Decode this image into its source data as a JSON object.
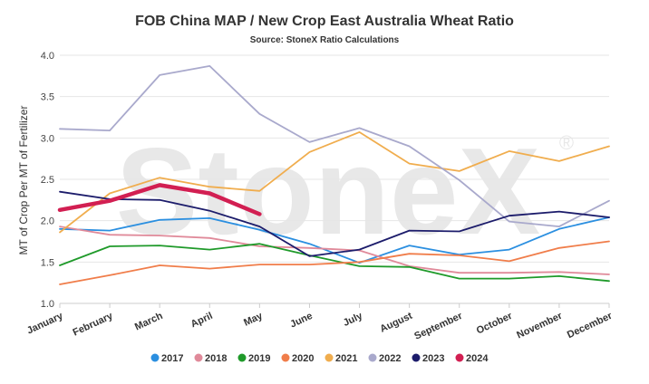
{
  "chart_data": {
    "type": "line",
    "title": "FOB China MAP / New Crop East Australia Wheat Ratio",
    "subtitle": "Source: StoneX Ratio Calculations",
    "watermark": "StoneX",
    "watermark_mark": "®",
    "xlabel": "",
    "ylabel": "MT of Crop Per MT of Fertilizer",
    "ylim": [
      1.0,
      4.0
    ],
    "yticks": [
      "1.0",
      "1.5",
      "2.0",
      "2.5",
      "3.0",
      "3.5",
      "4.0"
    ],
    "grid": true,
    "legend_position": "bottom",
    "categories": [
      "January",
      "February",
      "March",
      "April",
      "May",
      "June",
      "July",
      "August",
      "September",
      "October",
      "November",
      "December"
    ],
    "series": [
      {
        "name": "2017",
        "color": "#2b8fe0",
        "values": [
          1.9,
          1.88,
          2.01,
          2.03,
          1.89,
          1.72,
          1.49,
          1.7,
          1.59,
          1.65,
          1.9,
          2.04
        ]
      },
      {
        "name": "2018",
        "color": "#e08a9a",
        "values": [
          1.93,
          1.83,
          1.82,
          1.79,
          1.69,
          1.67,
          1.64,
          1.45,
          1.37,
          1.37,
          1.38,
          1.35
        ]
      },
      {
        "name": "2019",
        "color": "#1f9a2a",
        "values": [
          1.46,
          1.69,
          1.7,
          1.65,
          1.72,
          1.58,
          1.45,
          1.44,
          1.3,
          1.3,
          1.33,
          1.27
        ]
      },
      {
        "name": "2020",
        "color": "#f07d4a",
        "values": [
          1.23,
          1.34,
          1.46,
          1.42,
          1.47,
          1.47,
          1.5,
          1.6,
          1.58,
          1.51,
          1.67,
          1.75
        ]
      },
      {
        "name": "2021",
        "color": "#f0ad4e",
        "values": [
          1.86,
          2.33,
          2.52,
          2.41,
          2.36,
          2.83,
          3.07,
          2.69,
          2.6,
          2.84,
          2.72,
          2.9
        ]
      },
      {
        "name": "2022",
        "color": "#a9a9cc",
        "values": [
          3.11,
          3.09,
          3.76,
          3.87,
          3.29,
          2.95,
          3.12,
          2.9,
          2.49,
          1.99,
          1.93,
          2.24
        ]
      },
      {
        "name": "2023",
        "color": "#1c1c6b",
        "values": [
          2.35,
          2.26,
          2.25,
          2.12,
          1.93,
          1.57,
          1.65,
          1.88,
          1.87,
          2.06,
          2.11,
          2.04
        ]
      },
      {
        "name": "2024",
        "color": "#d21f52",
        "values": [
          2.13,
          2.24,
          2.43,
          2.33,
          2.08,
          null,
          null,
          null,
          null,
          null,
          null,
          null
        ]
      }
    ]
  }
}
